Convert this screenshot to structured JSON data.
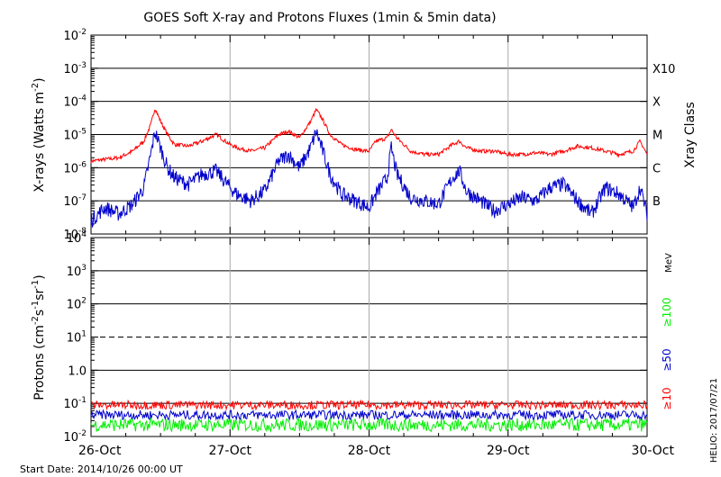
{
  "title": "GOES Soft X-ray and Protons Fluxes   (1min & 5min data)",
  "start_date": "Start Date: 2014/10/26 00:00 UT",
  "credit": "HELIO: 2017/07/21",
  "chart_data": [
    {
      "name": "xray",
      "type": "line",
      "ylabel_html": "X-rays (Watts m⁻²)",
      "ylabel_base": "X-rays (Watts m",
      "ylabel_sup": "-2",
      "ylabel_end": ")",
      "y_scale": "log",
      "ylim_exp": [
        -8,
        -2
      ],
      "y_tick_exps": [
        -8,
        -7,
        -6,
        -5,
        -4,
        -3,
        -2
      ],
      "right_axis_label": "Xray Class",
      "class_labels": [
        {
          "label": "B",
          "exp": -7
        },
        {
          "label": "C",
          "exp": -6
        },
        {
          "label": "M",
          "exp": -5
        },
        {
          "label": "X",
          "exp": -4
        },
        {
          "label": "X10",
          "exp": -3
        }
      ],
      "grid_lines_exp": [
        -7,
        -6,
        -5,
        -4,
        -3
      ],
      "series": [
        {
          "color": "#ff0000",
          "points_day_log": [
            [
              0.0,
              -5.8
            ],
            [
              0.1,
              -5.75
            ],
            [
              0.2,
              -5.7
            ],
            [
              0.3,
              -5.5
            ],
            [
              0.38,
              -5.2
            ],
            [
              0.43,
              -4.7
            ],
            [
              0.46,
              -4.2
            ],
            [
              0.5,
              -4.6
            ],
            [
              0.55,
              -5.0
            ],
            [
              0.6,
              -5.3
            ],
            [
              0.7,
              -5.35
            ],
            [
              0.8,
              -5.2
            ],
            [
              0.9,
              -5.0
            ],
            [
              1.0,
              -5.3
            ],
            [
              1.05,
              -5.4
            ],
            [
              1.15,
              -5.5
            ],
            [
              1.25,
              -5.4
            ],
            [
              1.35,
              -5.0
            ],
            [
              1.42,
              -4.9
            ],
            [
              1.5,
              -5.1
            ],
            [
              1.58,
              -4.6
            ],
            [
              1.62,
              -4.25
            ],
            [
              1.66,
              -4.5
            ],
            [
              1.72,
              -5.0
            ],
            [
              1.8,
              -5.3
            ],
            [
              1.9,
              -5.45
            ],
            [
              2.0,
              -5.5
            ],
            [
              2.05,
              -5.2
            ],
            [
              2.13,
              -5.1
            ],
            [
              2.16,
              -4.85
            ],
            [
              2.2,
              -5.1
            ],
            [
              2.3,
              -5.5
            ],
            [
              2.4,
              -5.6
            ],
            [
              2.5,
              -5.6
            ],
            [
              2.6,
              -5.3
            ],
            [
              2.65,
              -5.2
            ],
            [
              2.7,
              -5.4
            ],
            [
              2.8,
              -5.5
            ],
            [
              2.9,
              -5.5
            ],
            [
              3.0,
              -5.6
            ],
            [
              3.1,
              -5.6
            ],
            [
              3.2,
              -5.55
            ],
            [
              3.3,
              -5.6
            ],
            [
              3.4,
              -5.5
            ],
            [
              3.5,
              -5.35
            ],
            [
              3.6,
              -5.4
            ],
            [
              3.7,
              -5.5
            ],
            [
              3.8,
              -5.6
            ],
            [
              3.9,
              -5.5
            ],
            [
              3.95,
              -5.2
            ],
            [
              4.0,
              -5.6
            ]
          ]
        },
        {
          "color": "#0000cc",
          "points_day_log": [
            [
              0.0,
              -7.6
            ],
            [
              0.1,
              -7.2
            ],
            [
              0.2,
              -7.4
            ],
            [
              0.3,
              -7.1
            ],
            [
              0.38,
              -6.6
            ],
            [
              0.43,
              -5.6
            ],
            [
              0.46,
              -4.9
            ],
            [
              0.5,
              -5.4
            ],
            [
              0.55,
              -6.0
            ],
            [
              0.6,
              -6.3
            ],
            [
              0.7,
              -6.5
            ],
            [
              0.8,
              -6.2
            ],
            [
              0.9,
              -6.1
            ],
            [
              1.0,
              -6.6
            ],
            [
              1.05,
              -6.8
            ],
            [
              1.15,
              -7.0
            ],
            [
              1.25,
              -6.7
            ],
            [
              1.35,
              -5.8
            ],
            [
              1.42,
              -5.6
            ],
            [
              1.5,
              -6.0
            ],
            [
              1.58,
              -5.4
            ],
            [
              1.62,
              -4.9
            ],
            [
              1.66,
              -5.4
            ],
            [
              1.72,
              -6.2
            ],
            [
              1.8,
              -6.8
            ],
            [
              1.9,
              -7.0
            ],
            [
              2.0,
              -7.2
            ],
            [
              2.05,
              -6.8
            ],
            [
              2.13,
              -6.3
            ],
            [
              2.16,
              -5.4
            ],
            [
              2.2,
              -6.2
            ],
            [
              2.3,
              -6.9
            ],
            [
              2.4,
              -7.0
            ],
            [
              2.5,
              -7.1
            ],
            [
              2.6,
              -6.3
            ],
            [
              2.65,
              -6.1
            ],
            [
              2.7,
              -6.7
            ],
            [
              2.8,
              -7.0
            ],
            [
              2.9,
              -7.3
            ],
            [
              3.0,
              -7.1
            ],
            [
              3.1,
              -6.9
            ],
            [
              3.2,
              -7.0
            ],
            [
              3.3,
              -6.6
            ],
            [
              3.4,
              -6.5
            ],
            [
              3.5,
              -7.0
            ],
            [
              3.6,
              -7.4
            ],
            [
              3.7,
              -6.6
            ],
            [
              3.8,
              -6.8
            ],
            [
              3.9,
              -7.2
            ],
            [
              3.95,
              -6.6
            ],
            [
              4.0,
              -7.4
            ]
          ]
        }
      ]
    },
    {
      "name": "protons",
      "type": "line",
      "ylabel_base": "Protons (cm",
      "ylabel_sup1": "-2",
      "ylabel_mid": "s",
      "ylabel_sup2": "-1",
      "ylabel_mid2": "sr",
      "ylabel_sup3": "-1",
      "ylabel_end": ")",
      "y_scale": "log",
      "ylim_exp": [
        -2,
        4
      ],
      "y_tick_labels": [
        {
          "exp": 4,
          "base": "10",
          "sup": "4"
        },
        {
          "exp": 3,
          "base": "10",
          "sup": "3"
        },
        {
          "exp": 2,
          "base": "10",
          "sup": "2"
        },
        {
          "exp": 1,
          "base": "10",
          "sup": "1"
        },
        {
          "exp": 0,
          "base": "1.0",
          "sup": ""
        },
        {
          "exp": -1,
          "base": "10",
          "sup": "-1"
        },
        {
          "exp": -2,
          "base": "10",
          "sup": "-2"
        }
      ],
      "grid_lines_exp": [
        3,
        2,
        0,
        -1
      ],
      "dashed_line_exp": 1,
      "unit_label": "MeV",
      "series": [
        {
          "name": "≥10",
          "color": "#ff0000",
          "mean_exp": -1.05,
          "amp": 0.13
        },
        {
          "name": "≥50",
          "color": "#0000cc",
          "mean_exp": -1.35,
          "amp": 0.14
        },
        {
          "name": "≥100",
          "color": "#00ee00",
          "mean_exp": -1.65,
          "amp": 0.2
        }
      ]
    }
  ],
  "x_axis": {
    "type": "date",
    "range": [
      "2014-10-26",
      "2014-10-30"
    ],
    "tick_labels": [
      "26-Oct",
      "27-Oct",
      "28-Oct",
      "29-Oct",
      "30-Oct"
    ]
  }
}
